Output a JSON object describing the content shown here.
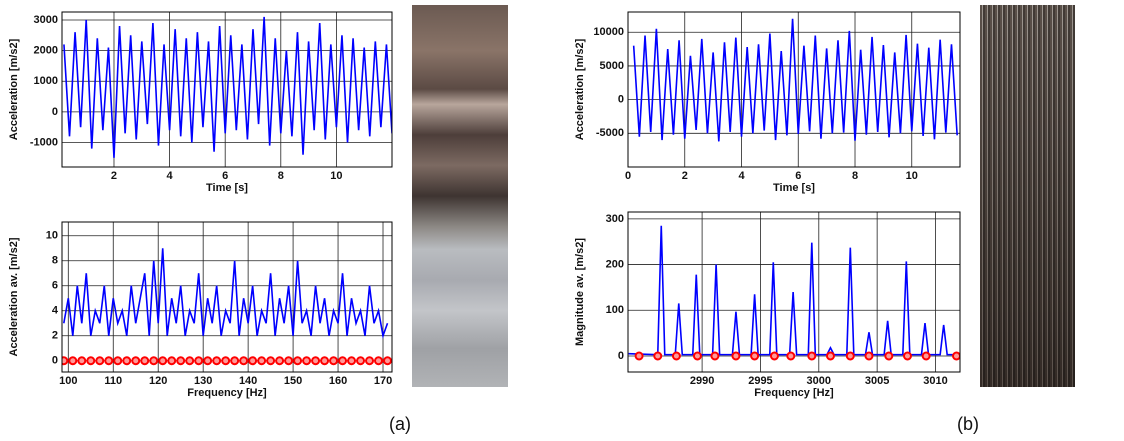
{
  "panel_labels": [
    "(a)",
    "(b)"
  ],
  "chart_data": [
    {
      "type": "line",
      "xlabel": "Time [s]",
      "ylabel": "Acceleration [m/s2]",
      "xlim": [
        0.13,
        12
      ],
      "ylim": [
        -1800,
        3260
      ],
      "xticks": [
        2,
        4,
        6,
        8,
        10
      ],
      "yticks": [
        -1000,
        0,
        1000,
        2000,
        3000
      ],
      "grid": true,
      "series": [
        {
          "color": "#0000ff",
          "x": [
            0.2,
            0.4,
            0.6,
            0.8,
            1.0,
            1.2,
            1.4,
            1.6,
            1.8,
            2.0,
            2.2,
            2.4,
            2.6,
            2.8,
            3.0,
            3.2,
            3.4,
            3.6,
            3.8,
            4.0,
            4.2,
            4.4,
            4.6,
            4.8,
            5.0,
            5.2,
            5.4,
            5.6,
            5.8,
            6.0,
            6.2,
            6.4,
            6.6,
            6.8,
            7.0,
            7.2,
            7.4,
            7.6,
            7.8,
            8.0,
            8.2,
            8.4,
            8.6,
            8.8,
            9.0,
            9.2,
            9.4,
            9.6,
            9.8,
            10.0,
            10.2,
            10.4,
            10.6,
            10.8,
            11.0,
            11.2,
            11.4,
            11.6,
            11.8,
            12.0
          ],
          "values": [
            2200,
            -800,
            2600,
            -500,
            3000,
            -1200,
            2400,
            -600,
            2100,
            -1500,
            2800,
            -700,
            2500,
            -900,
            2300,
            -400,
            2900,
            -1100,
            2200,
            -600,
            2700,
            -800,
            2400,
            -1000,
            2600,
            -500,
            2300,
            -1300,
            2800,
            -700,
            2500,
            -600,
            2200,
            -900,
            2700,
            -400,
            3100,
            -1100,
            2400,
            -700,
            2000,
            -800,
            2600,
            -1400,
            2300,
            -600,
            2900,
            -900,
            2200,
            -500,
            2500,
            -1000,
            2400,
            -600,
            2100,
            -800,
            2300,
            -500,
            2200,
            -700
          ]
        }
      ]
    },
    {
      "type": "line",
      "xlabel": "Frequency [Hz]",
      "ylabel": "Acceleration av. [m/s2]",
      "xlim": [
        98.6,
        172
      ],
      "ylim": [
        -0.9,
        11.1
      ],
      "xticks": [
        100,
        110,
        120,
        130,
        140,
        150,
        160,
        170
      ],
      "yticks": [
        0,
        2,
        4,
        6,
        8,
        10
      ],
      "grid": true,
      "series": [
        {
          "color": "#0000ff",
          "x": [
            99,
            100,
            101,
            102,
            103,
            104,
            105,
            106,
            107,
            108,
            109,
            110,
            111,
            112,
            113,
            114,
            115,
            116,
            117,
            118,
            119,
            120,
            121,
            122,
            123,
            124,
            125,
            126,
            127,
            128,
            129,
            130,
            131,
            132,
            133,
            134,
            135,
            136,
            137,
            138,
            139,
            140,
            141,
            142,
            143,
            144,
            145,
            146,
            147,
            148,
            149,
            150,
            151,
            152,
            153,
            154,
            155,
            156,
            157,
            158,
            159,
            160,
            161,
            162,
            163,
            164,
            165,
            166,
            167,
            168,
            169,
            170,
            171
          ],
          "values": [
            3,
            5,
            2,
            6,
            3,
            7,
            2,
            4,
            3,
            6,
            2,
            5,
            3,
            4,
            2,
            6,
            3,
            5,
            7,
            2,
            8,
            3,
            9,
            2,
            5,
            3,
            6,
            2,
            4,
            3,
            7,
            2,
            5,
            3,
            6,
            2,
            4,
            3,
            8,
            2,
            5,
            3,
            6,
            2,
            4,
            3,
            7,
            2,
            5,
            3,
            6,
            2,
            8,
            3,
            4,
            2,
            6,
            3,
            5,
            2,
            4,
            3,
            7,
            2,
            5,
            3,
            4,
            2,
            6,
            3,
            4,
            2,
            3
          ]
        },
        {
          "color": "#ff0000",
          "style": "markers",
          "x": [
            99,
            101,
            103,
            105,
            107,
            109,
            111,
            113,
            115,
            117,
            119,
            121,
            123,
            125,
            127,
            129,
            131,
            133,
            135,
            137,
            139,
            141,
            143,
            145,
            147,
            149,
            151,
            153,
            155,
            157,
            159,
            161,
            163,
            165,
            167,
            169,
            171
          ],
          "values": [
            0,
            0,
            0,
            0,
            0,
            0,
            0,
            0,
            0,
            0,
            0,
            0,
            0,
            0,
            0,
            0,
            0,
            0,
            0,
            0,
            0,
            0,
            0,
            0,
            0,
            0,
            0,
            0,
            0,
            0,
            0,
            0,
            0,
            0,
            0,
            0,
            0
          ]
        }
      ]
    },
    {
      "type": "line",
      "xlabel": "Time [s]",
      "ylabel": "Acceleration [m/s2]",
      "xlim": [
        0,
        11.7
      ],
      "ylim": [
        -10000,
        13000
      ],
      "xticks": [
        0,
        2,
        4,
        6,
        8,
        10
      ],
      "yticks": [
        -5000,
        0,
        5000,
        10000
      ],
      "grid": true,
      "series": [
        {
          "color": "#0000ff",
          "x": [
            0.2,
            0.4,
            0.6,
            0.8,
            1.0,
            1.2,
            1.4,
            1.6,
            1.8,
            2.0,
            2.2,
            2.4,
            2.6,
            2.8,
            3.0,
            3.2,
            3.4,
            3.6,
            3.8,
            4.0,
            4.2,
            4.4,
            4.6,
            4.8,
            5.0,
            5.2,
            5.4,
            5.6,
            5.8,
            6.0,
            6.2,
            6.4,
            6.6,
            6.8,
            7.0,
            7.2,
            7.4,
            7.6,
            7.8,
            8.0,
            8.2,
            8.4,
            8.6,
            8.8,
            9.0,
            9.2,
            9.4,
            9.6,
            9.8,
            10.0,
            10.2,
            10.4,
            10.6,
            10.8,
            11.0,
            11.2,
            11.4,
            11.6
          ],
          "values": [
            8000,
            -5500,
            9500,
            -4800,
            10500,
            -6000,
            7500,
            -5200,
            8800,
            -5800,
            6500,
            -4500,
            9000,
            -5000,
            7000,
            -6200,
            8500,
            -4800,
            9200,
            -5500,
            7800,
            -5000,
            8200,
            -4600,
            9800,
            -6000,
            7200,
            -5300,
            12000,
            -5100,
            8000,
            -4700,
            9500,
            -5800,
            7600,
            -5000,
            8800,
            -4900,
            10200,
            -6100,
            7400,
            -5200,
            9300,
            -4800,
            8100,
            -5600,
            7000,
            -5000,
            9600,
            -4700,
            8300,
            -5400,
            7700,
            -5900,
            8900,
            -4900,
            8200,
            -5300
          ]
        }
      ]
    },
    {
      "type": "line",
      "xlabel": "Frequency [Hz]",
      "ylabel": "Magnitude av. [m/s2]",
      "xlim": [
        2983.65,
        3012.1
      ],
      "ylim": [
        -35,
        315
      ],
      "xticks": [
        2990,
        2995,
        3000,
        3005,
        3010
      ],
      "yticks": [
        0,
        100,
        200,
        300
      ],
      "grid": true,
      "series": [
        {
          "color": "#0000ff",
          "x": [
            2983.7,
            2986.2,
            2986.5,
            2986.8,
            2987.7,
            2988,
            2988.3,
            2989.2,
            2989.5,
            2989.8,
            2990.9,
            2991.2,
            2991.5,
            2992.6,
            2992.9,
            2993.2,
            2994.2,
            2994.5,
            2994.8,
            2995.8,
            2996.1,
            2996.4,
            2997.5,
            2997.8,
            2998.1,
            2999.1,
            2999.4,
            2999.7,
            3000.7,
            3001,
            3001.3,
            3002.4,
            3002.7,
            3003,
            3004,
            3004.3,
            3004.6,
            3005.6,
            3005.9,
            3006.2,
            3007.2,
            3007.5,
            3007.8,
            3008.8,
            3009.1,
            3009.4,
            3010.4,
            3010.7,
            3011,
            3012
          ],
          "values": [
            5,
            3,
            285,
            3,
            3,
            115,
            3,
            3,
            178,
            3,
            3,
            200,
            3,
            3,
            97,
            3,
            3,
            135,
            3,
            3,
            205,
            3,
            3,
            140,
            3,
            3,
            248,
            3,
            3,
            18,
            3,
            3,
            237,
            3,
            3,
            52,
            3,
            3,
            77,
            3,
            3,
            207,
            3,
            3,
            72,
            3,
            3,
            68,
            3,
            3
          ]
        },
        {
          "color": "#ff0000",
          "style": "markers",
          "x": [
            2984.6,
            2986.2,
            2987.8,
            2989.6,
            2991.1,
            2992.9,
            2994.5,
            2996.2,
            2997.6,
            2999.4,
            3001,
            3002.7,
            3004.3,
            3006,
            3007.6,
            3009.2,
            3011.8
          ],
          "values": [
            0,
            0,
            0,
            0,
            0,
            0,
            0,
            0,
            0,
            0,
            0,
            0,
            0,
            0,
            0,
            0,
            0
          ]
        }
      ]
    }
  ]
}
